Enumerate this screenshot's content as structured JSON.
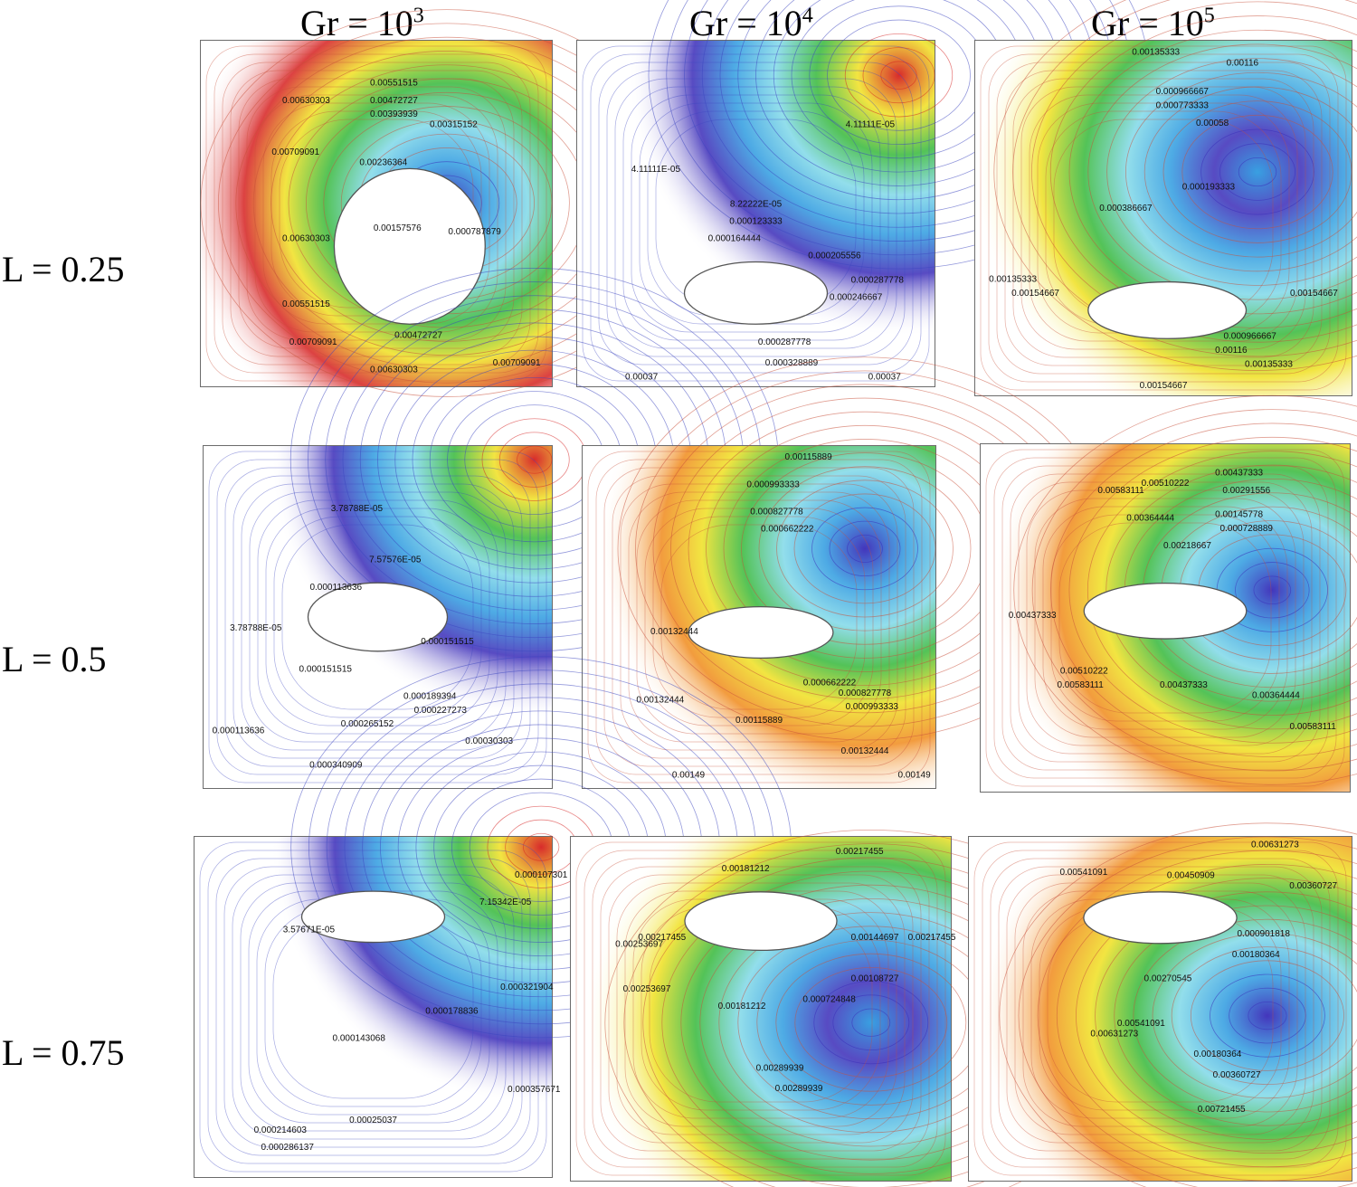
{
  "column_headers": [
    {
      "base": "Gr = 10",
      "exp": "3"
    },
    {
      "base": "Gr = 10",
      "exp": "4"
    },
    {
      "base": "Gr = 10",
      "exp": "5"
    }
  ],
  "row_labels": [
    "L = 0.25",
    "L = 0.5",
    "L = 0.75"
  ],
  "colors": {
    "low": "#3a2bb8",
    "blue": "#2e9be0",
    "cyan": "#7fd8e8",
    "green": "#35b83a",
    "yellow": "#f0e020",
    "orange": "#f08a1c",
    "red": "#d62020",
    "line_warm": "#c8503a",
    "line_cool": "#3d46c0",
    "border": "#6b6b6b"
  },
  "panels": [
    {
      "id": "r1c1",
      "labels": [
        "0.00630303",
        "0.00551515",
        "0.00472727",
        "0.00393939",
        "0.00315152",
        "0.00236364",
        "0.00709091",
        "0.00157576",
        "0.000787879",
        "0.00630303",
        "0.00551515",
        "0.00472727",
        "0.00630303",
        "0.00709091",
        "0.00709091"
      ]
    },
    {
      "id": "r1c2",
      "labels": [
        "4.11111E-05",
        "8.22222E-05",
        "0.000123333",
        "0.000164444",
        "0.000205556",
        "0.000246667",
        "0.000287778",
        "0.000328889",
        "0.00037",
        "0.00037",
        "4.11111E-05",
        "0.000287778"
      ]
    },
    {
      "id": "r1c3",
      "labels": [
        "0.00135333",
        "0.00116",
        "0.000966667",
        "0.000773333",
        "0.00058",
        "0.000386667",
        "0.000193333",
        "0.00135333",
        "0.00154667",
        "0.00154667",
        "0.000966667",
        "0.00116",
        "0.00135333",
        "0.00154667"
      ]
    },
    {
      "id": "r2c1",
      "labels": [
        "3.78788E-05",
        "7.57576E-05",
        "0.000113636",
        "0.000151515",
        "0.000189394",
        "0.000227273",
        "0.000265152",
        "0.00030303",
        "0.000340909",
        "0.000151515",
        "0.000113636",
        "3.78788E-05"
      ]
    },
    {
      "id": "r2c2",
      "labels": [
        "0.00115889",
        "0.000993333",
        "0.000827778",
        "0.000662222",
        "0.00132444",
        "0.00132444",
        "0.000662222",
        "0.000827778",
        "0.000993333",
        "0.00115889",
        "0.00132444",
        "0.00149",
        "0.00149"
      ]
    },
    {
      "id": "r2c3",
      "labels": [
        "0.00583111",
        "0.00510222",
        "0.00437333",
        "0.00291556",
        "0.00364444",
        "0.00218667",
        "0.00145778",
        "0.000728889",
        "0.00437333",
        "0.00510222",
        "0.00583111",
        "0.00437333",
        "0.00364444",
        "0.00583111"
      ]
    },
    {
      "id": "r3c1",
      "labels": [
        "3.57671E-05",
        "7.15342E-05",
        "0.000107301",
        "0.000143068",
        "0.000178836",
        "0.000214603",
        "0.000286137",
        "0.00025037",
        "0.000321904",
        "0.000357671"
      ]
    },
    {
      "id": "r3c2",
      "labels": [
        "0.00217455",
        "0.00181212",
        "0.00253697",
        "0.00217455",
        "0.00289939",
        "0.00181212",
        "0.00144697",
        "0.000724848",
        "0.00108727",
        "0.00253697",
        "0.00289939",
        "0.00217455"
      ]
    },
    {
      "id": "r3c3",
      "labels": [
        "0.00631273",
        "0.00541091",
        "0.00450909",
        "0.00360727",
        "0.00270545",
        "0.00180364",
        "0.000901818",
        "0.00541091",
        "0.00631273",
        "0.00721455",
        "0.00360727",
        "0.00180364"
      ]
    }
  ]
}
